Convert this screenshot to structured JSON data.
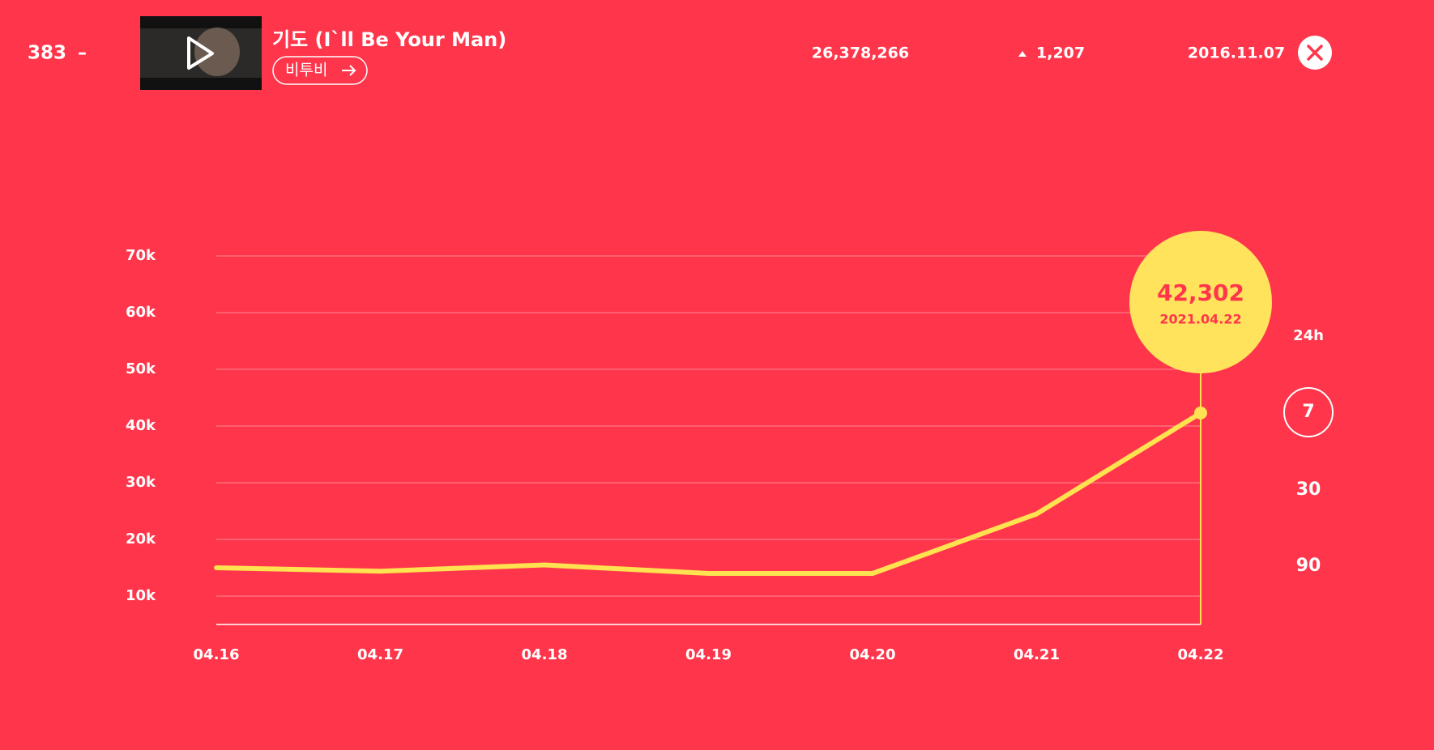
{
  "header": {
    "rank": "383",
    "rank_change": "–",
    "title": "기도 (I`ll Be Your Man)",
    "artist": "비투비",
    "total": "26,378,266",
    "delta": "1,207",
    "release_date": "2016.11.07"
  },
  "chart_data": {
    "type": "line",
    "categories": [
      "04.16",
      "04.17",
      "04.18",
      "04.19",
      "04.20",
      "04.21",
      "04.22"
    ],
    "series": [
      {
        "color": "#ffe24f",
        "values": [
          15000,
          14400,
          15500,
          14000,
          14000,
          24500,
          42302
        ]
      }
    ],
    "ylim": [
      5000,
      70000
    ],
    "yticks": [
      {
        "value": 10000,
        "label": "10k"
      },
      {
        "value": 20000,
        "label": "20k"
      },
      {
        "value": 30000,
        "label": "30k"
      },
      {
        "value": 40000,
        "label": "40k"
      },
      {
        "value": 50000,
        "label": "50k"
      },
      {
        "value": 60000,
        "label": "60k"
      },
      {
        "value": 70000,
        "label": "70k"
      }
    ],
    "grid": true
  },
  "tooltip": {
    "value": "42,302",
    "date": "2021.04.22"
  },
  "periods": [
    "24h",
    "7",
    "30",
    "90"
  ],
  "selected_period": 1
}
